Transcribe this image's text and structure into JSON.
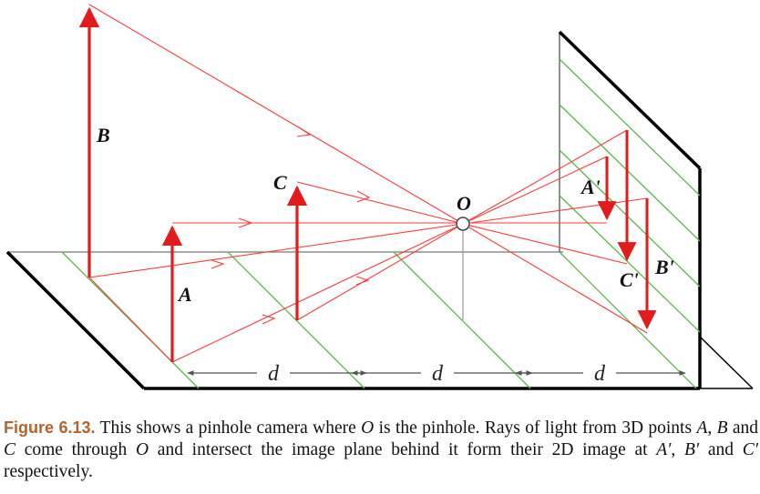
{
  "diagram": {
    "labels": {
      "B": "B",
      "C": "C",
      "A": "A",
      "O": "O",
      "A_prime": "A'",
      "B_prime": "B'",
      "C_prime": "C'"
    },
    "distance_label": "d"
  },
  "caption": {
    "label": "Figure 6.13.",
    "label_color": "#b4632a",
    "parts": [
      " This shows a pinhole camera where ",
      "O",
      " is the pinhole. Rays of light from 3D points ",
      "A",
      ", ",
      "B",
      " and ",
      "C",
      " come through ",
      "O",
      " and intersect the image plane behind it form their 2D image at ",
      "A′",
      ", ",
      "B′",
      " and ",
      "C′",
      " respectively."
    ]
  },
  "colors": {
    "ray": "#ff3b3b",
    "object_arrow": "#e21b1b",
    "floor_line": "#59b84a",
    "plane_edge": "#000000",
    "axis": "#9a9a9a"
  }
}
